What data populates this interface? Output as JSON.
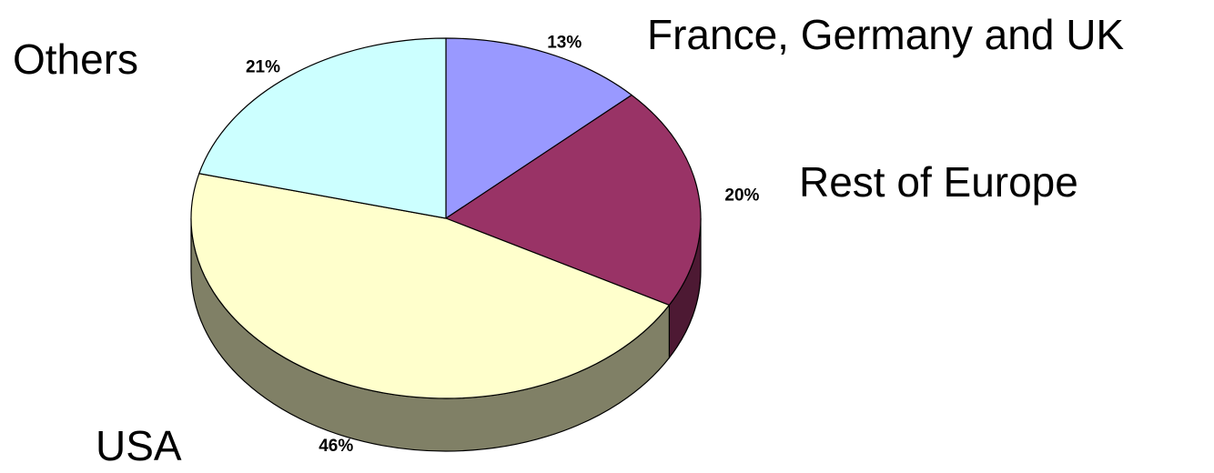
{
  "chart_data": {
    "type": "pie",
    "style": "3d",
    "categories": [
      "France, Germany and UK",
      "Rest of Europe",
      "USA",
      "Others"
    ],
    "values": [
      13,
      20,
      46,
      21
    ],
    "value_labels": [
      "13%",
      "20%",
      "46%",
      "21%"
    ],
    "colors": [
      "#9999ff",
      "#993366",
      "#ffffcc",
      "#ccffff"
    ],
    "side_colors": [
      "#5c5c99",
      "#4d1933",
      "#808066",
      "#7a9999"
    ]
  }
}
